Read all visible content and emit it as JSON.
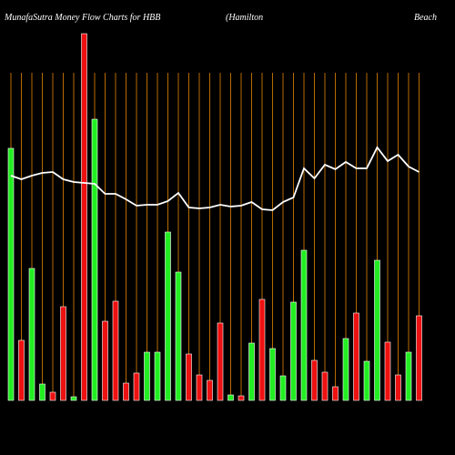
{
  "chart_data": {
    "type": "bar",
    "title_parts": [
      "MunafaSutra  Money  Flow  Charts for HBB",
      "(Hamilton",
      "Beach"
    ],
    "categories": [
      null,
      null,
      null,
      null,
      null,
      null,
      null,
      null,
      null,
      null,
      null,
      null,
      null,
      null,
      null,
      null,
      null,
      null,
      null,
      null,
      null,
      null,
      null,
      null,
      null,
      null,
      null,
      null,
      null,
      null,
      null,
      null,
      null,
      null,
      null,
      null,
      null,
      null,
      null,
      null
    ],
    "values": [
      277,
      66,
      145,
      18,
      9,
      103,
      4,
      403,
      309,
      87,
      109,
      19,
      30,
      53,
      53,
      185,
      141,
      51,
      28,
      22,
      85,
      6,
      5,
      63,
      111,
      57,
      27,
      108,
      165,
      44,
      31,
      15,
      68,
      96,
      43,
      154,
      64,
      28,
      53,
      93
    ],
    "bar_colors": [
      "#22ee22",
      "#ee1111",
      "#22ee22",
      "#22ee22",
      "#ee1111",
      "#ee1111",
      "#22ee22",
      "#ee1111",
      "#22ee22",
      "#ee1111",
      "#ee1111",
      "#ee1111",
      "#ee1111",
      "#22ee22",
      "#22ee22",
      "#22ee22",
      "#22ee22",
      "#ee1111",
      "#ee1111",
      "#ee1111",
      "#ee1111",
      "#22ee22",
      "#ee1111",
      "#22ee22",
      "#ee1111",
      "#22ee22",
      "#22ee22",
      "#22ee22",
      "#22ee22",
      "#ee1111",
      "#ee1111",
      "#ee1111",
      "#22ee22",
      "#ee1111",
      "#22ee22",
      "#22ee22",
      "#ee1111",
      "#ee1111",
      "#22ee22",
      "#ee1111"
    ],
    "line": {
      "color": "#ffffff",
      "values": [
        247,
        243,
        247,
        250,
        251,
        243,
        240,
        239,
        238,
        227,
        227,
        221,
        214,
        215,
        215,
        219,
        228,
        212,
        211,
        212,
        215,
        213,
        214,
        218,
        210,
        209,
        218,
        223,
        255,
        244,
        259,
        254,
        262,
        255,
        255,
        278,
        263,
        270,
        257,
        251
      ]
    },
    "ylim": [
      0,
      405
    ],
    "grid_color": "#b86a00"
  }
}
